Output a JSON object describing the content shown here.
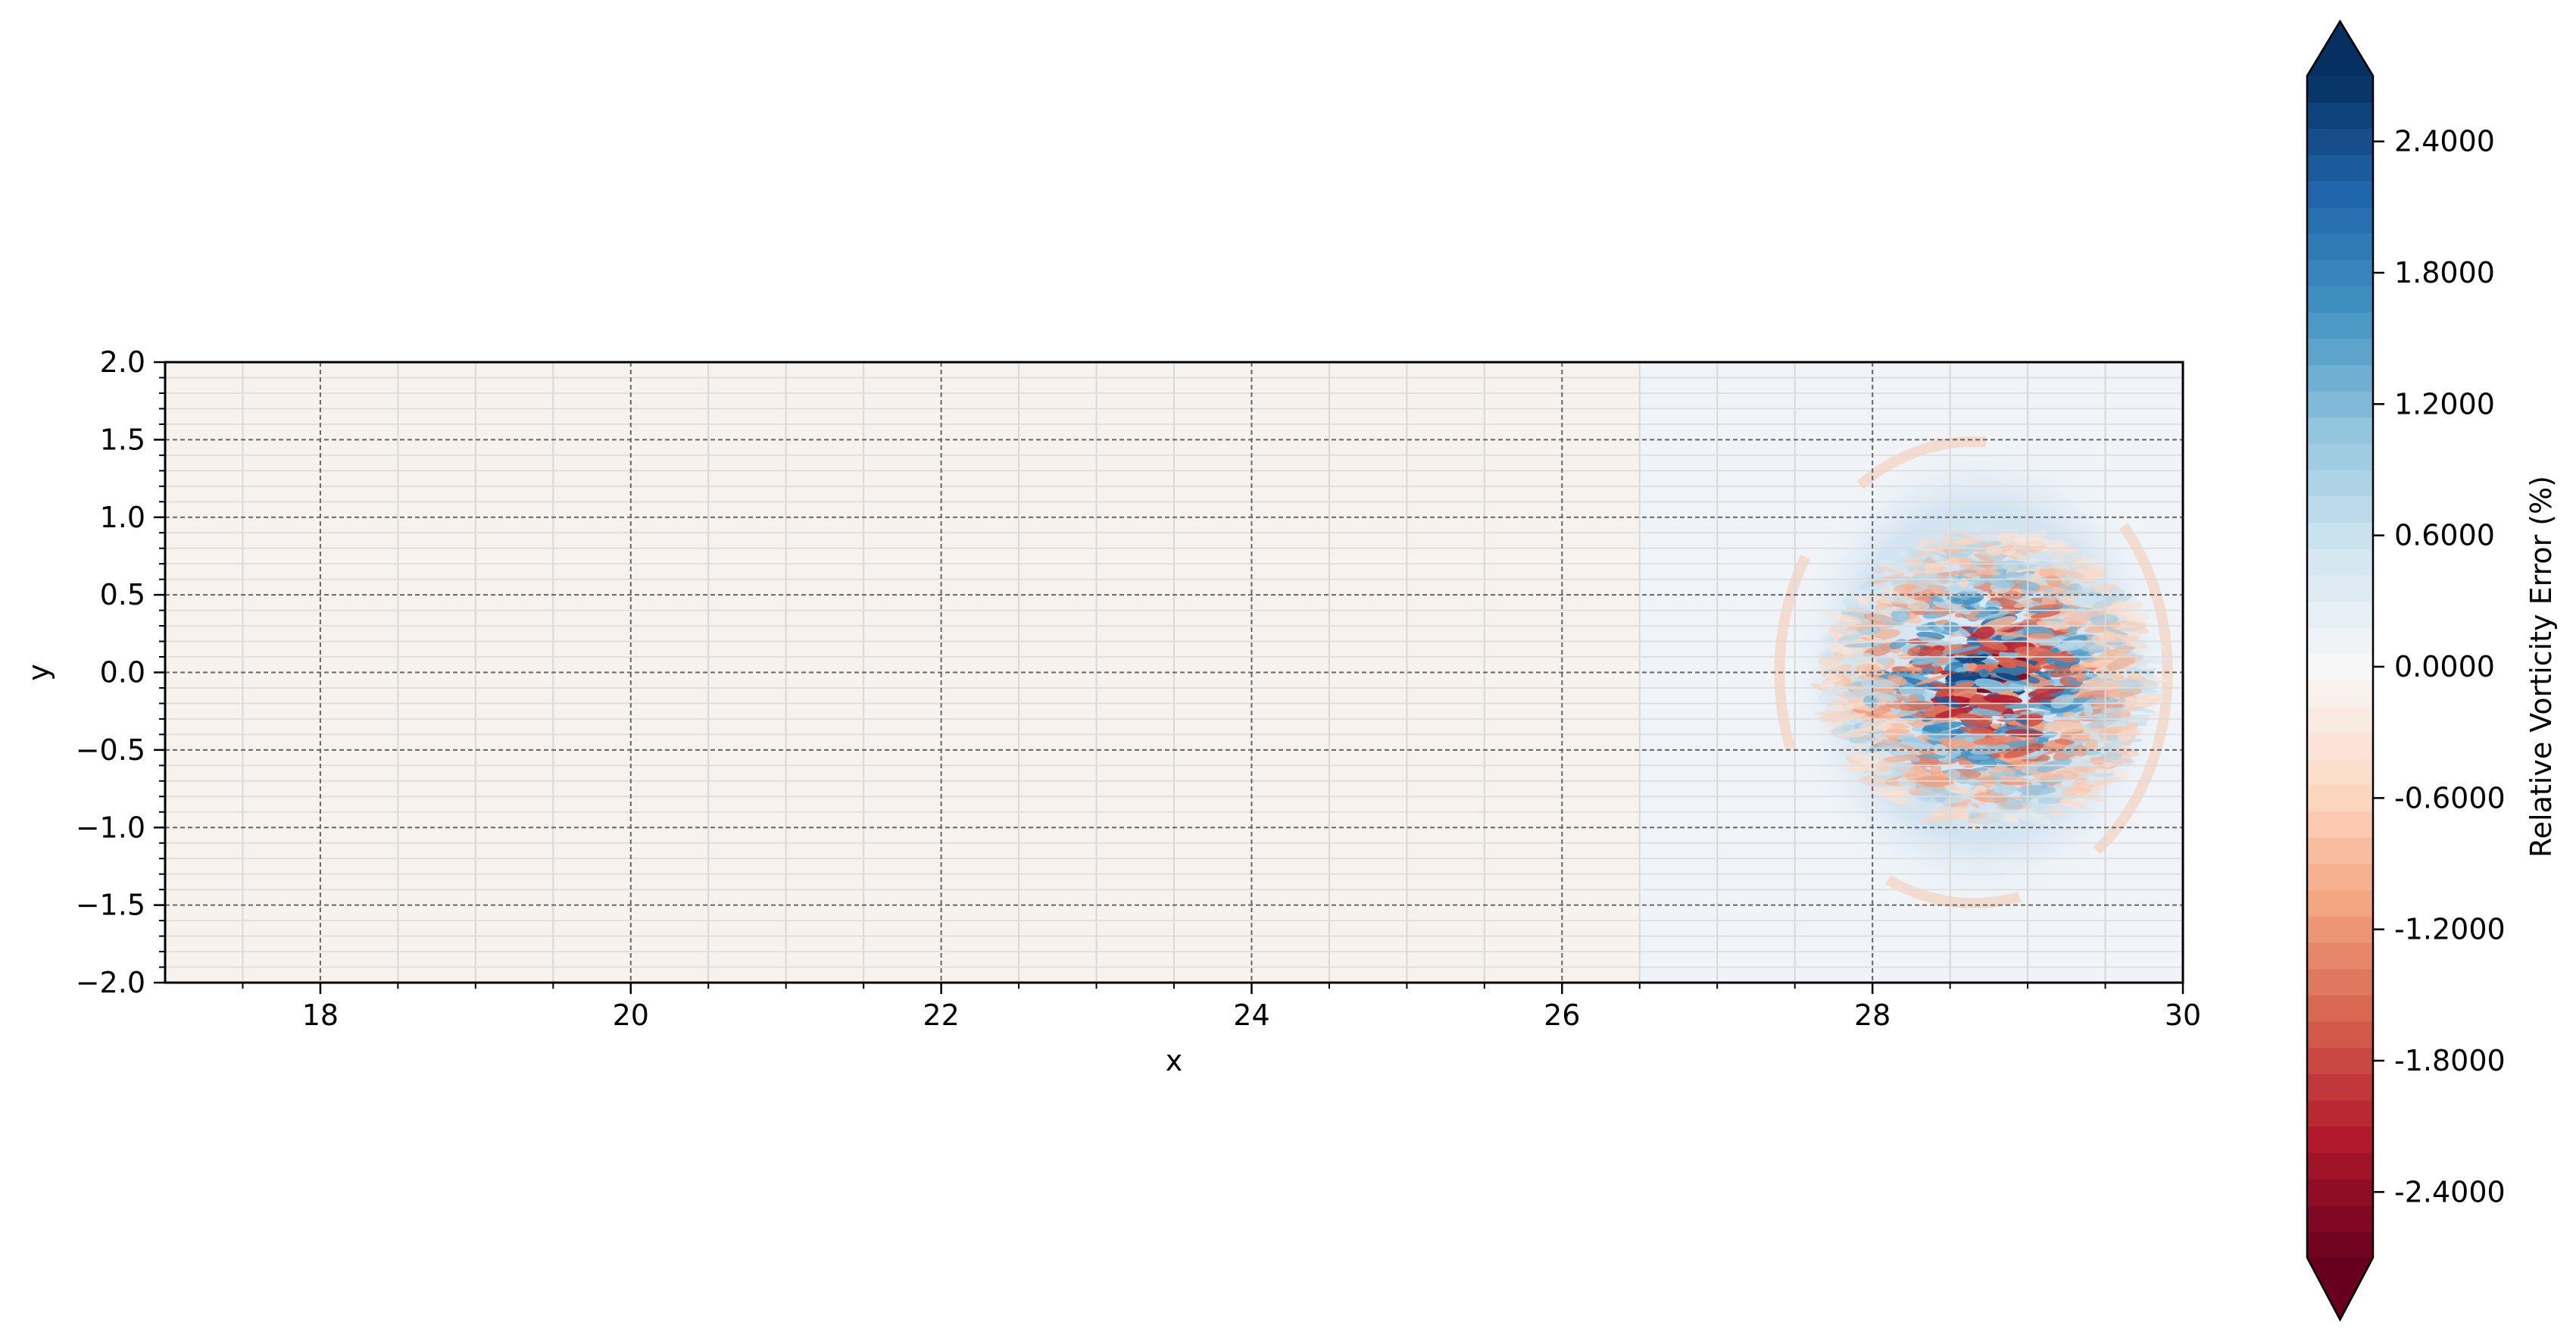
{
  "chart_data": {
    "type": "heatmap",
    "title": "",
    "xlabel": "x",
    "ylabel": "y",
    "xlim": [
      17,
      30
    ],
    "ylim": [
      -2.0,
      2.0
    ],
    "x_ticks": [
      18,
      20,
      22,
      24,
      26,
      28,
      30
    ],
    "x_tick_labels": [
      "18",
      "20",
      "22",
      "24",
      "26",
      "28",
      "30"
    ],
    "y_ticks": [
      2.0,
      1.5,
      1.0,
      0.5,
      0.0,
      -0.5,
      -1.0,
      -1.5,
      -2.0
    ],
    "y_tick_labels": [
      "2.0",
      "1.5",
      "1.0",
      "0.5",
      "0.0",
      "−0.5",
      "−1.0",
      "−1.5",
      "−2.0"
    ],
    "grid": true,
    "grid_style": "dashed",
    "colormap": "RdBu",
    "colorbar": {
      "label": "Relative Vorticity Error (%)",
      "range": [
        -2.7,
        2.7
      ],
      "extend": "both",
      "ticks": [
        2.4,
        1.8,
        1.2,
        0.6,
        0.0,
        -0.6,
        -1.2,
        -1.8,
        -2.4
      ],
      "tick_labels": [
        "2.4000",
        "1.8000",
        "1.2000",
        "0.6000",
        "0.0000",
        "-0.6000",
        "-1.2000",
        "-1.8000",
        "-2.4000"
      ]
    },
    "features": [
      {
        "kind": "turbulent-patch",
        "center": [
          28.75,
          -0.05
        ],
        "radius_x": 1.05,
        "radius_y": 0.95,
        "peak_magnitude": 2.7
      },
      {
        "kind": "halo-ring",
        "center": [
          28.7,
          0.0
        ],
        "radius_x": 1.25,
        "radius_y": 1.6,
        "magnitude": 0.35
      },
      {
        "kind": "background",
        "x_range": [
          17,
          26.5
        ],
        "value": -0.1
      },
      {
        "kind": "background",
        "x_range": [
          26.5,
          30
        ],
        "value": 0.1
      }
    ]
  }
}
